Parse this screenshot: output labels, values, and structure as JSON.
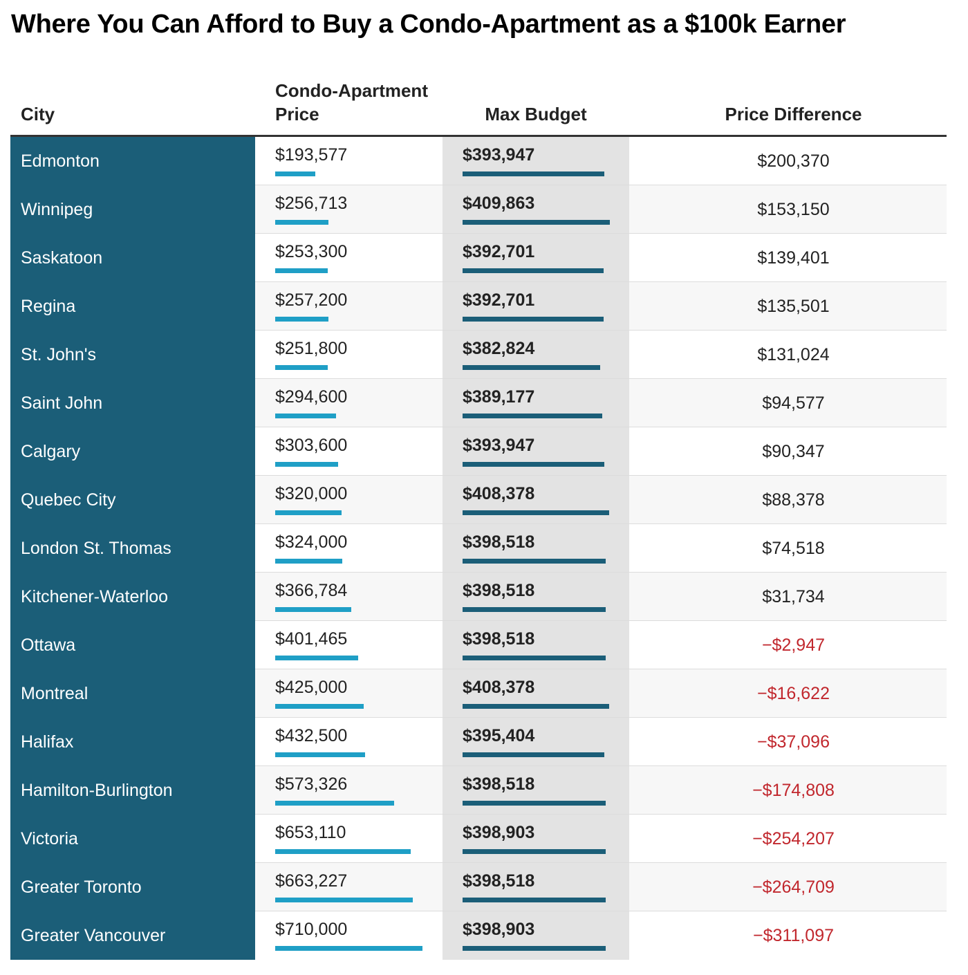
{
  "title": "Where You Can Afford to Buy a Condo-Apartment as a $100k Earner",
  "table": {
    "columns": [
      "City",
      "Condo-Apartment Price",
      "Max Budget",
      "Price Difference"
    ],
    "price_bar_color": "#1f9fc6",
    "budget_bar_color": "#1b5e78",
    "city_background": "#1b5e78",
    "negative_color": "#c1272d",
    "rows": [
      {
        "city": "Edmonton",
        "price": 193577,
        "price_label": "$193,577",
        "budget": 393947,
        "budget_label": "$393,947",
        "difference": "$200,370"
      },
      {
        "city": "Winnipeg",
        "price": 256713,
        "price_label": "$256,713",
        "budget": 409863,
        "budget_label": "$409,863",
        "difference": "$153,150"
      },
      {
        "city": "Saskatoon",
        "price": 253300,
        "price_label": "$253,300",
        "budget": 392701,
        "budget_label": "$392,701",
        "difference": "$139,401"
      },
      {
        "city": "Regina",
        "price": 257200,
        "price_label": "$257,200",
        "budget": 392701,
        "budget_label": "$392,701",
        "difference": "$135,501"
      },
      {
        "city": "St. John's",
        "price": 251800,
        "price_label": "$251,800",
        "budget": 382824,
        "budget_label": "$382,824",
        "difference": "$131,024"
      },
      {
        "city": "Saint John",
        "price": 294600,
        "price_label": "$294,600",
        "budget": 389177,
        "budget_label": "$389,177",
        "difference": "$94,577"
      },
      {
        "city": "Calgary",
        "price": 303600,
        "price_label": "$303,600",
        "budget": 393947,
        "budget_label": "$393,947",
        "difference": "$90,347"
      },
      {
        "city": "Quebec City",
        "price": 320000,
        "price_label": "$320,000",
        "budget": 408378,
        "budget_label": "$408,378",
        "difference": "$88,378"
      },
      {
        "city": "London St. Thomas",
        "price": 324000,
        "price_label": "$324,000",
        "budget": 398518,
        "budget_label": "$398,518",
        "difference": "$74,518"
      },
      {
        "city": "Kitchener-Waterloo",
        "price": 366784,
        "price_label": "$366,784",
        "budget": 398518,
        "budget_label": "$398,518",
        "difference": "$31,734"
      },
      {
        "city": "Ottawa",
        "price": 401465,
        "price_label": "$401,465",
        "budget": 398518,
        "budget_label": "$398,518",
        "difference": "−$2,947"
      },
      {
        "city": "Montreal",
        "price": 425000,
        "price_label": "$425,000",
        "budget": 408378,
        "budget_label": "$408,378",
        "difference": "−$16,622"
      },
      {
        "city": "Halifax",
        "price": 432500,
        "price_label": "$432,500",
        "budget": 395404,
        "budget_label": "$395,404",
        "difference": "−$37,096"
      },
      {
        "city": "Hamilton-Burlington",
        "price": 573326,
        "price_label": "$573,326",
        "budget": 398518,
        "budget_label": "$398,518",
        "difference": "−$174,808"
      },
      {
        "city": "Victoria",
        "price": 653110,
        "price_label": "$653,110",
        "budget": 398903,
        "budget_label": "$398,903",
        "difference": "−$254,207"
      },
      {
        "city": "Greater Toronto",
        "price": 663227,
        "price_label": "$663,227",
        "budget": 398518,
        "budget_label": "$398,518",
        "difference": "−$264,709"
      },
      {
        "city": "Greater Vancouver",
        "price": 710000,
        "price_label": "$710,000",
        "budget": 398903,
        "budget_label": "$398,903",
        "difference": "−$311,097"
      }
    ]
  }
}
